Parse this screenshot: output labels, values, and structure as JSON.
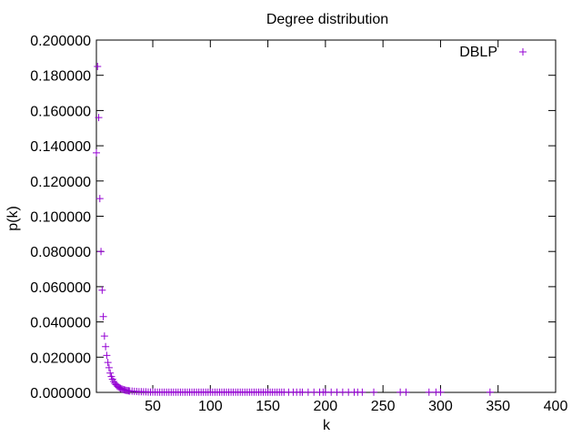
{
  "chart_data": {
    "type": "scatter",
    "title": "Degree distribution",
    "xlabel": "k",
    "ylabel": "p(k)",
    "xlim": [
      1,
      400
    ],
    "ylim": [
      0,
      0.2
    ],
    "x_ticks": [
      "50",
      "100",
      "150",
      "200",
      "250",
      "300",
      "350",
      "400"
    ],
    "y_ticks": [
      "0.000000",
      "0.020000",
      "0.040000",
      "0.060000",
      "0.080000",
      "0.100000",
      "0.120000",
      "0.140000",
      "0.160000",
      "0.180000",
      "0.200000"
    ],
    "grid": false,
    "legend_position": "top-right",
    "marker": "+",
    "color": "#9400d3",
    "series": [
      {
        "name": "DBLP",
        "x": [
          1,
          2,
          3,
          4,
          5,
          6,
          7,
          8,
          9,
          10,
          11,
          12,
          13,
          14,
          15,
          16,
          17,
          18,
          19,
          20,
          21,
          22,
          23,
          24,
          25,
          26,
          27,
          28,
          29,
          30,
          32,
          34,
          36,
          38,
          40,
          42,
          44,
          46,
          48,
          50,
          52,
          54,
          56,
          58,
          60,
          62,
          64,
          66,
          68,
          70,
          72,
          74,
          76,
          78,
          80,
          82,
          84,
          86,
          88,
          90,
          92,
          94,
          96,
          98,
          100,
          102,
          104,
          106,
          108,
          110,
          112,
          114,
          116,
          118,
          120,
          122,
          124,
          126,
          128,
          130,
          132,
          134,
          136,
          138,
          140,
          142,
          144,
          146,
          148,
          150,
          152,
          154,
          156,
          158,
          160,
          162,
          164,
          168,
          172,
          175,
          178,
          180,
          185,
          190,
          195,
          198,
          200,
          205,
          210,
          215,
          220,
          225,
          228,
          232,
          242,
          265,
          270,
          290,
          296,
          300,
          343
        ],
        "y": [
          0.136,
          0.185,
          0.156,
          0.11,
          0.08,
          0.058,
          0.043,
          0.032,
          0.026,
          0.021,
          0.017,
          0.014,
          0.011,
          0.009,
          0.0075,
          0.0062,
          0.0052,
          0.0044,
          0.0037,
          0.0031,
          0.0027,
          0.0023,
          0.002,
          0.0017,
          0.0015,
          0.0013,
          0.0011,
          0.001,
          0.0009,
          0.0008,
          0.0007,
          0.0006,
          0.0005,
          0.0004,
          0.0004,
          0.0003,
          0.0003,
          0.0002,
          0.0002,
          0.0002,
          0.0002,
          0.0001,
          0.0001,
          0.0001,
          0.0001,
          0.0001,
          0.0001,
          0.0001,
          0.0001,
          0.0001,
          0.0001,
          0.0001,
          0.0001,
          0.0001,
          0.0001,
          0.0001,
          0.0001,
          0.0001,
          0.0001,
          0.0001,
          0.0001,
          0.0001,
          0.0001,
          0.0001,
          0.0001,
          0.0001,
          0.0001,
          0.0001,
          0.0001,
          0.0001,
          0.0001,
          0.0001,
          0.0001,
          0.0001,
          0.0001,
          0.0001,
          0.0001,
          0.0001,
          0.0001,
          0.0001,
          0.0001,
          0.0001,
          0.0001,
          0.0001,
          0.0001,
          0.0001,
          0.0001,
          0.0001,
          0.0001,
          0.0001,
          0.0001,
          0.0001,
          0.0001,
          0.0001,
          0.0001,
          0.0001,
          0.0001,
          0.0001,
          0.0001,
          0.0001,
          0.0001,
          0.0001,
          0.0001,
          0.0001,
          0.0001,
          0.0001,
          0.0001,
          0.0001,
          0.0001,
          0.0001,
          0.0001,
          0.0001,
          0.0001,
          0.0001,
          0.0001,
          0.0001,
          0.0001,
          0.0001,
          0.0001,
          0.0001,
          0.0001
        ]
      }
    ]
  }
}
